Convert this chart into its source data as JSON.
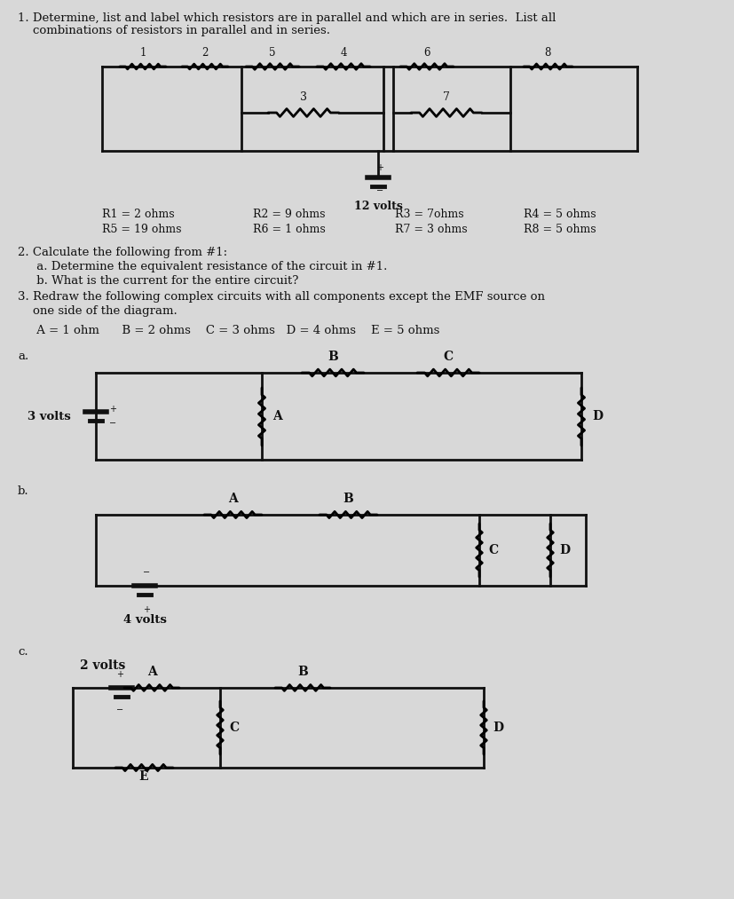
{
  "bg_color": "#d8d8d8",
  "text_color": "#111111",
  "line_color": "#111111",
  "title1": "1. Determine, list and label which resistors are in parallel and which are in series.  List all",
  "title1b": "    combinations of resistors in parallel and in series.",
  "q2_title": "2. Calculate the following from #1:",
  "q2a": "     a. Determine the equivalent resistance of the circuit in #1.",
  "q2b": "     b. What is the current for the entire circuit?",
  "q3_title": "3. Redraw the following complex circuits with all components except the EMF source on",
  "q3b": "    one side of the diagram.",
  "components_label": "     A = 1 ohm      B = 2 ohms    C = 3 ohms   D = 4 ohms    E = 5 ohms",
  "label_12v": "12 volts",
  "label_3v": "3 volts",
  "label_4v": "4 volts",
  "label_2v": "2 volts"
}
